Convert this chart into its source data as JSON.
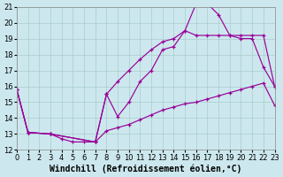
{
  "xlabel": "Windchill (Refroidissement éolien,°C)",
  "bg_color": "#cce8ee",
  "grid_color": "#aacccc",
  "line_color": "#990099",
  "x_min": 0,
  "x_max": 23,
  "y_min": 12,
  "y_max": 21,
  "curves": [
    {
      "x": [
        0,
        1,
        3,
        4,
        5,
        6,
        7,
        8,
        9,
        10,
        11,
        12,
        13,
        14,
        15,
        16,
        17,
        18,
        19,
        20,
        21,
        22,
        23
      ],
      "y": [
        15.8,
        13.1,
        13.0,
        12.7,
        12.5,
        12.5,
        12.5,
        15.5,
        14.1,
        15.0,
        16.3,
        17.0,
        18.3,
        18.5,
        19.5,
        21.2,
        21.2,
        20.5,
        19.2,
        19.0,
        19.0,
        17.2,
        16.0
      ]
    },
    {
      "x": [
        0,
        1,
        3,
        7,
        8,
        9,
        10,
        11,
        12,
        13,
        14,
        15,
        16,
        17,
        18,
        19,
        20,
        21,
        22,
        23
      ],
      "y": [
        15.8,
        13.1,
        13.0,
        12.5,
        15.5,
        16.3,
        17.0,
        17.7,
        18.3,
        18.8,
        19.0,
        19.5,
        19.2,
        19.2,
        19.2,
        19.2,
        19.2,
        19.2,
        19.2,
        16.0
      ]
    },
    {
      "x": [
        0,
        1,
        3,
        7,
        8,
        9,
        10,
        11,
        12,
        13,
        14,
        15,
        16,
        17,
        18,
        19,
        20,
        21,
        22,
        23
      ],
      "y": [
        15.8,
        13.1,
        13.0,
        12.5,
        13.2,
        13.4,
        13.6,
        13.9,
        14.2,
        14.5,
        14.7,
        14.9,
        15.0,
        15.2,
        15.4,
        15.6,
        15.8,
        16.0,
        16.2,
        14.8
      ]
    }
  ],
  "tick_fontsize": 6,
  "xlabel_fontsize": 7
}
